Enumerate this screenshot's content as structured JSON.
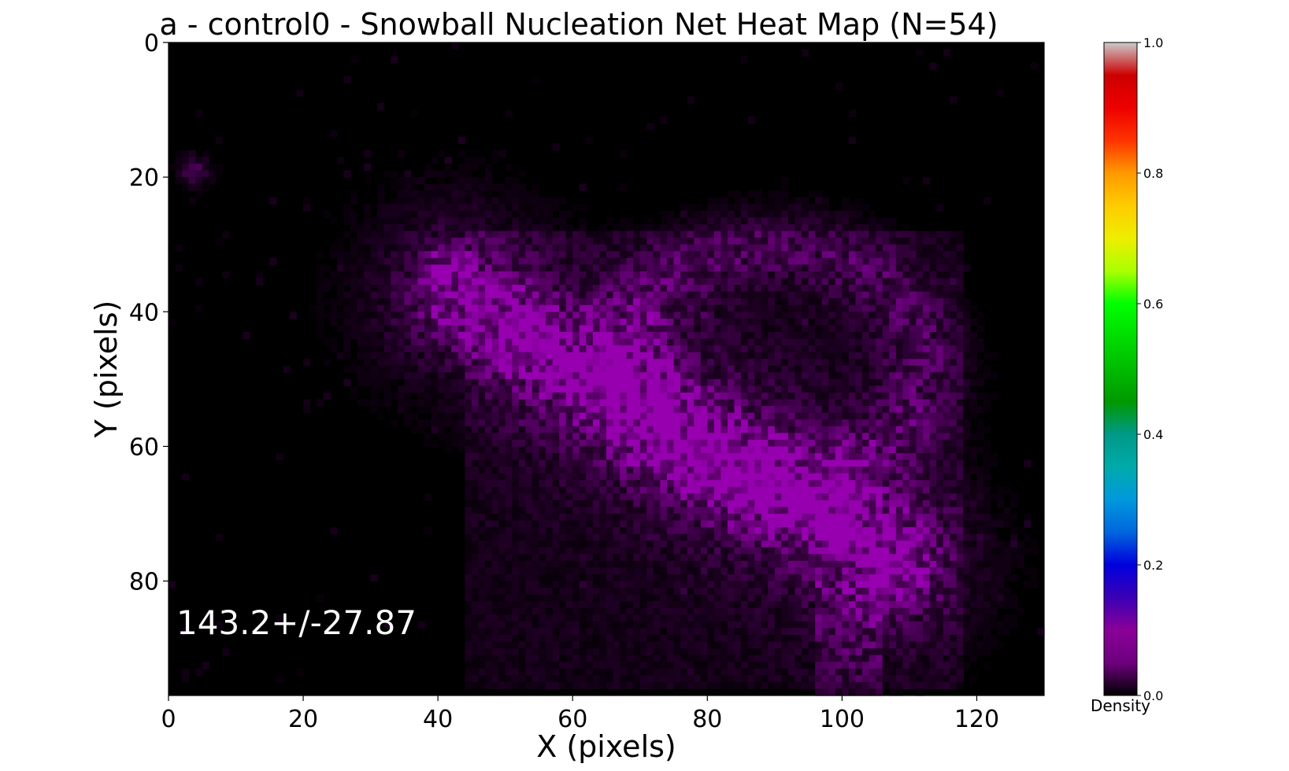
{
  "chart_data": {
    "type": "heatmap",
    "title": "a - control0 - Snowball Nucleation Net Heat Map (N=54)",
    "xlabel": "X (pixels)",
    "ylabel": "Y (pixels)",
    "xlim": [
      0,
      130
    ],
    "ylim": [
      97,
      0
    ],
    "x_ticks": [
      0,
      20,
      40,
      60,
      80,
      100,
      120
    ],
    "y_ticks": [
      0,
      20,
      40,
      60,
      80
    ],
    "grid": false,
    "colormap": "nipy_spectral",
    "colorbar": {
      "label": "Density",
      "range": [
        0.0,
        1.0
      ],
      "ticks": [
        0.0,
        0.2,
        0.4,
        0.6,
        0.8,
        1.0
      ],
      "tick_labels": [
        "0.0",
        "0.2",
        "0.4",
        "0.6",
        "0.8",
        "1.0"
      ]
    },
    "annotation": "143.2+/-27.87",
    "density_features": [
      {
        "kind": "band",
        "x": [
          46,
          120
        ],
        "y": [
          38,
          80
        ],
        "center_x": [
          50,
          100
        ],
        "center_y": [
          42,
          72
        ],
        "peak": 0.09
      },
      {
        "kind": "ring",
        "center_x": 90,
        "center_y": 48,
        "radius_x": 22,
        "radius_y": 18,
        "peak": 0.05
      },
      {
        "kind": "spot",
        "x": 4,
        "y": 19,
        "peak": 0.06
      },
      {
        "kind": "spot",
        "x": 41,
        "y": 33,
        "peak": 0.05
      },
      {
        "kind": "spot",
        "x": 98,
        "y": 72,
        "peak": 0.1
      }
    ]
  },
  "colors": {
    "background": "#000000",
    "low": "#000000",
    "density_hue": "#9a00b0",
    "annotation_text": "#ffffff"
  }
}
